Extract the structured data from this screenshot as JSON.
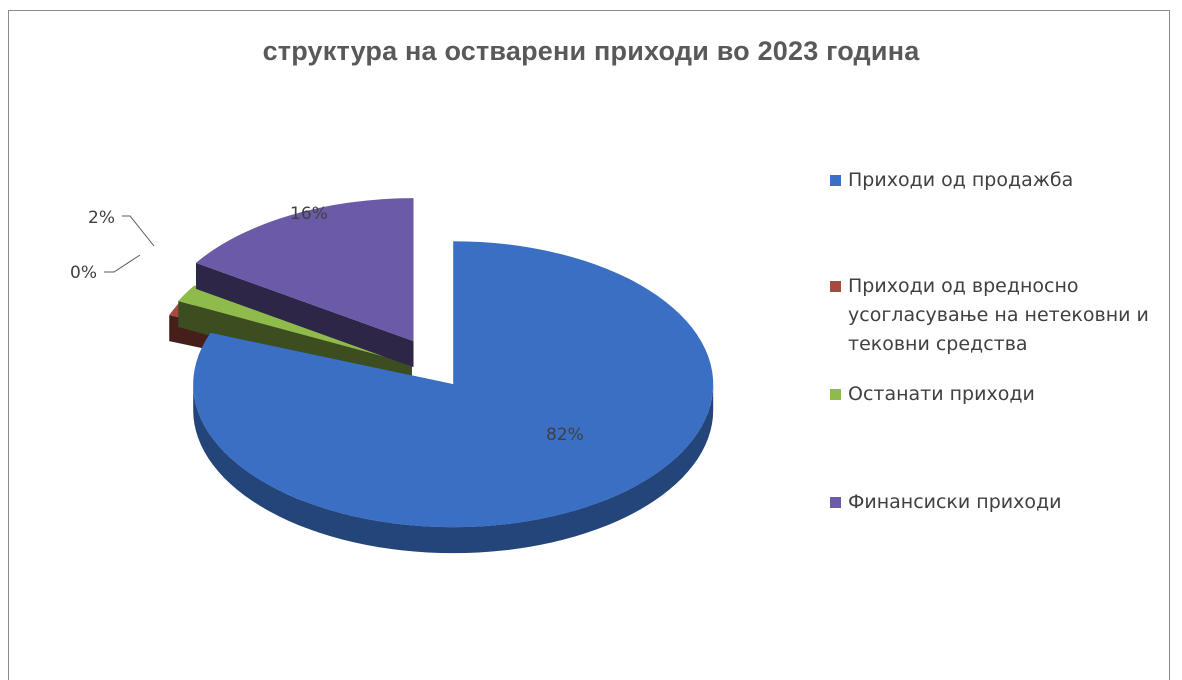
{
  "chart_data": {
    "type": "pie",
    "title": "структура на остварени приходи во 2023 година",
    "categories": [
      "Приходи од продажба",
      "Приходи од вредносно усогласување на нетековни и тековни средства",
      "Останати приходи",
      "Финансиски приходи"
    ],
    "values": [
      82,
      0,
      2,
      16
    ],
    "data_labels": [
      "82%",
      "0%",
      "2%",
      "16%"
    ],
    "colors": [
      "#3a6fc4",
      "#a64a3f",
      "#8fba4c",
      "#6a5aa8"
    ],
    "legend_position": "right",
    "style": "3d-exploded"
  },
  "legend": {
    "items": [
      {
        "label": "Приходи од продажба",
        "color": "#3a6fc4"
      },
      {
        "label": "Приходи од вредносно\nусогласување на нетековни и\nтековни средства",
        "color": "#a64a3f"
      },
      {
        "label": "Останати приходи",
        "color": "#8fba4c"
      },
      {
        "label": "Финансиски приходи",
        "color": "#6a5aa8"
      }
    ]
  }
}
